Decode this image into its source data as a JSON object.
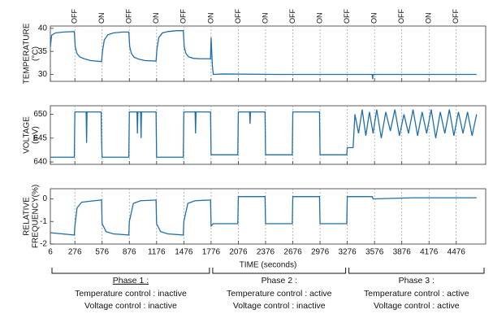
{
  "chart_data": [
    {
      "type": "line",
      "ylabel": [
        "TEMPERATURE",
        "(°C)"
      ],
      "annotations": [
        {
          "x": 276,
          "text": "OFF"
        },
        {
          "x": 576,
          "text": "ON"
        },
        {
          "x": 876,
          "text": "OFF"
        },
        {
          "x": 1176,
          "text": "ON"
        },
        {
          "x": 1476,
          "text": "OFF"
        },
        {
          "x": 1776,
          "text": "ON"
        },
        {
          "x": 2076,
          "text": "OFF"
        },
        {
          "x": 2376,
          "text": "ON"
        },
        {
          "x": 2676,
          "text": "OFF"
        },
        {
          "x": 2976,
          "text": "ON"
        },
        {
          "x": 3276,
          "text": "OFF"
        },
        {
          "x": 3576,
          "text": "ON"
        },
        {
          "x": 3876,
          "text": "OFF"
        },
        {
          "x": 4176,
          "text": "ON"
        },
        {
          "x": 4476,
          "text": "OFF"
        }
      ],
      "x": [
        6,
        20,
        60,
        150,
        270,
        280,
        300,
        330,
        380,
        450,
        570,
        580,
        600,
        640,
        700,
        800,
        870,
        880,
        900,
        930,
        980,
        1050,
        1170,
        1180,
        1200,
        1240,
        1300,
        1400,
        1470,
        1480,
        1500,
        1530,
        1580,
        1650,
        1770,
        1776,
        1790,
        1800,
        1900,
        2500,
        3500,
        3550,
        3555,
        3560,
        4700
      ],
      "series": [
        {
          "color": "#1f6fa8",
          "values": [
            36,
            38.5,
            39,
            39.2,
            39.3,
            36,
            34.5,
            33.8,
            33.4,
            33,
            32.8,
            35,
            37.5,
            38.6,
            39,
            39.2,
            39.2,
            36,
            34.5,
            33.7,
            33.3,
            33,
            32.9,
            35.5,
            38,
            39,
            39.3,
            39.5,
            39.5,
            36,
            34.5,
            33.8,
            33.5,
            33.4,
            33.4,
            38,
            32,
            30,
            30.1,
            30,
            30,
            30,
            29,
            30,
            30
          ]
        }
      ],
      "ylim": [
        28.5,
        40.5
      ],
      "yticks": [
        30,
        35,
        40
      ]
    },
    {
      "type": "line",
      "ylabel": [
        "VOLTAGE",
        "(mV)"
      ],
      "x": [
        6,
        270,
        276,
        400,
        405,
        410,
        565,
        570,
        576,
        870,
        876,
        960,
        965,
        970,
        1000,
        1005,
        1010,
        1170,
        1176,
        1470,
        1476,
        1600,
        1605,
        1610,
        1770,
        1776,
        2070,
        2076,
        2200,
        2205,
        2210,
        2370,
        2376,
        2670,
        2676,
        2970,
        2976,
        3270,
        3276,
        3340,
        3360,
        3400,
        3440,
        3480,
        3520,
        3560,
        3600,
        3650,
        3700,
        3750,
        3800,
        3850,
        3900,
        3950,
        4000,
        4050,
        4100,
        4150,
        4200,
        4250,
        4300,
        4350,
        4400,
        4450,
        4500,
        4550,
        4600,
        4650,
        4700
      ],
      "series": [
        {
          "color": "#1f6fa8",
          "values": [
            641,
            641,
            650.5,
            650.5,
            644,
            650.5,
            650.5,
            644.5,
            641,
            641,
            650.5,
            650.5,
            646,
            650.5,
            650.5,
            645,
            650.5,
            650.5,
            641,
            641,
            650.5,
            650.5,
            646,
            650.5,
            650.5,
            641.5,
            641.5,
            650.5,
            650.5,
            648,
            650.5,
            650.5,
            641.5,
            641.5,
            650.5,
            650.5,
            641.5,
            641.5,
            643,
            643,
            650,
            646,
            651,
            645.5,
            650.5,
            646,
            651,
            645,
            650.5,
            646.5,
            651,
            645.5,
            650,
            646,
            651,
            645.5,
            650.5,
            646,
            651,
            645,
            650.5,
            646,
            651,
            645.5,
            650.5,
            646,
            650.5,
            645.5,
            650
          ]
        }
      ],
      "ylim": [
        639.5,
        651.8
      ],
      "yticks": [
        640,
        645,
        650
      ]
    },
    {
      "type": "line",
      "ylabel": [
        "RELATIVE",
        "FREQUENCY(%)"
      ],
      "xlabel": "TIME (seconds)",
      "x": [
        6,
        270,
        276,
        300,
        350,
        450,
        570,
        576,
        620,
        700,
        870,
        876,
        920,
        1000,
        1170,
        1176,
        1220,
        1300,
        1470,
        1476,
        1520,
        1600,
        1770,
        1776,
        1800,
        2070,
        2076,
        2370,
        2376,
        2670,
        2676,
        2970,
        2976,
        3270,
        3276,
        3550,
        3560,
        4000,
        4400,
        4700
      ],
      "series": [
        {
          "color": "#1f6fa8",
          "values": [
            -1.5,
            -1.6,
            -1.2,
            -0.4,
            -0.15,
            -0.1,
            -0.05,
            -1.1,
            -1.45,
            -1.55,
            -1.6,
            -1,
            -0.2,
            -0.08,
            -0.05,
            -1.1,
            -1.45,
            -1.55,
            -1.6,
            -1,
            -0.2,
            -0.08,
            -0.05,
            -1.2,
            -1.1,
            -1.1,
            0.1,
            0.1,
            -1.1,
            -1.1,
            0.1,
            0.1,
            -1.1,
            -1.1,
            0.1,
            0.1,
            0,
            0.05,
            0.05,
            0.05
          ]
        }
      ],
      "ylim": [
        -2,
        0.45
      ],
      "yticks": [
        -2,
        -1,
        0
      ],
      "xlim": [
        6,
        4800
      ],
      "xticks": [
        6,
        276,
        576,
        876,
        1176,
        1476,
        1776,
        2076,
        2376,
        2676,
        2976,
        3276,
        3576,
        3876,
        4176,
        4476
      ]
    }
  ],
  "phases": [
    {
      "title": "Phase 1 :",
      "underline": true,
      "start": 6,
      "end": 1776,
      "lines": [
        "Temperature control : inactive",
        "Voltage control : inactive"
      ]
    },
    {
      "title": "Phase 2 :",
      "underline": false,
      "start": 1776,
      "end": 3276,
      "lines": [
        "Temperature control : active",
        "Voltage control : inactive"
      ]
    },
    {
      "title": "Phase 3 :",
      "underline": false,
      "start": 3276,
      "end": 4800,
      "lines": [
        "Temperature control : active",
        "Voltage control : active"
      ]
    }
  ]
}
